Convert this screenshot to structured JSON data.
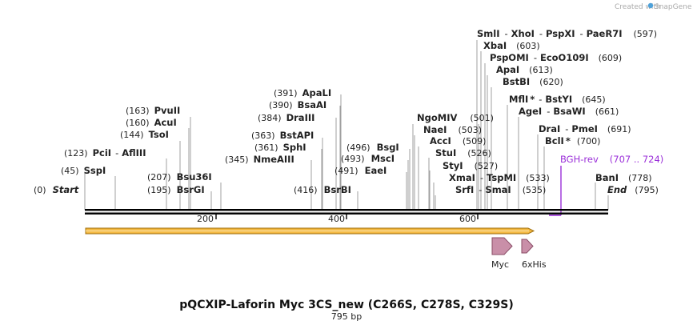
{
  "credit": {
    "prefix": "Created with",
    "brand": "SnapGene"
  },
  "title": "pQCXIP-Laforin Myc 3CS_new (C266S, C278S, C329S)",
  "length_label": "795 bp",
  "ruler": {
    "labels": [
      "200",
      "400",
      "600"
    ]
  },
  "sites": [
    {
      "pos": "(45)",
      "name": "SspI"
    },
    {
      "pos": "(123)",
      "name": "PciI",
      "sep": "-",
      "name2": "AflIII"
    },
    {
      "pos": "(144)",
      "name": "TsoI"
    },
    {
      "pos": "(160)",
      "name": "AcuI"
    },
    {
      "pos": "(163)",
      "name": "PvuII"
    },
    {
      "pos": "(195)",
      "name": "BsrGI"
    },
    {
      "pos": "(207)",
      "name": "Bsu36I"
    },
    {
      "pos": "(345)",
      "name": "NmeAIII"
    },
    {
      "pos": "(361)",
      "name": "SphI"
    },
    {
      "pos": "(363)",
      "name": "BstAPI"
    },
    {
      "pos": "(384)",
      "name": "DraIII"
    },
    {
      "pos": "(390)",
      "name": "BsaAI"
    },
    {
      "pos": "(391)",
      "name": "ApaLI"
    },
    {
      "pos": "(416)",
      "name": "BsrBI"
    },
    {
      "pos": "(491)",
      "name": "EaeI"
    },
    {
      "pos": "(493)",
      "name": "MscI"
    },
    {
      "pos": "(496)",
      "name": "BsgI"
    },
    {
      "name": "NgoMIV"
    },
    {
      "name": "NaeI",
      "pos": "(503)"
    },
    {
      "name": "AccI",
      "pos": "(509)"
    },
    {
      "name": "StuI",
      "pos": "(526)"
    },
    {
      "name": "StyI",
      "pos": "(527)"
    },
    {
      "name": "XmaI",
      "sep": "-",
      "name2": "TspMI"
    },
    {
      "name": "SrfI",
      "sep": "-",
      "name2": "SmaI",
      "pos": "(535)"
    },
    {
      "name": "SmlI",
      "sep": "-",
      "name2": "XhoI",
      "sep2": "-",
      "name3": "PspXI",
      "sep3": "-",
      "name4": "PaeR7I",
      "pos": "(597)"
    },
    {
      "name": "XbaI",
      "pos": "(603)"
    },
    {
      "name": "PspOMI",
      "sep": "-",
      "name2": "EcoO109I",
      "pos": "(609)"
    },
    {
      "name": "ApaI",
      "pos": "(613)"
    },
    {
      "name": "BstBI",
      "pos": "(620)"
    },
    {
      "name": "MflI",
      "star": "*",
      "sep": "-",
      "name2": "BstYI",
      "pos": "(645)"
    },
    {
      "name": "AgeI",
      "sep": "-",
      "name2": "BsaWI",
      "pos": "(661)"
    },
    {
      "name": "DraI",
      "sep": "-",
      "name2": "PmeI",
      "pos": "(691)"
    },
    {
      "name": "BclI",
      "star": "*",
      "pos": "(700)"
    },
    {
      "name": "BanI",
      "pos": "(778)"
    }
  ],
  "misc_positions": [
    "(501)",
    "(533)"
  ],
  "start": {
    "pos": "(0)",
    "name": "Start"
  },
  "end": {
    "name": "End",
    "pos": "(795)"
  },
  "primer": {
    "name": "BGH-rev",
    "range": "(707 .. 724)",
    "color": "#9b30d9"
  },
  "features": [
    {
      "name": "Myc"
    },
    {
      "name": "6xHis"
    }
  ],
  "colors": {
    "orf": "#f4b942",
    "orf_border": "#a0700f",
    "feature": "#c98fa8",
    "feature_border": "#8a4d66",
    "backbone": "#000000"
  }
}
